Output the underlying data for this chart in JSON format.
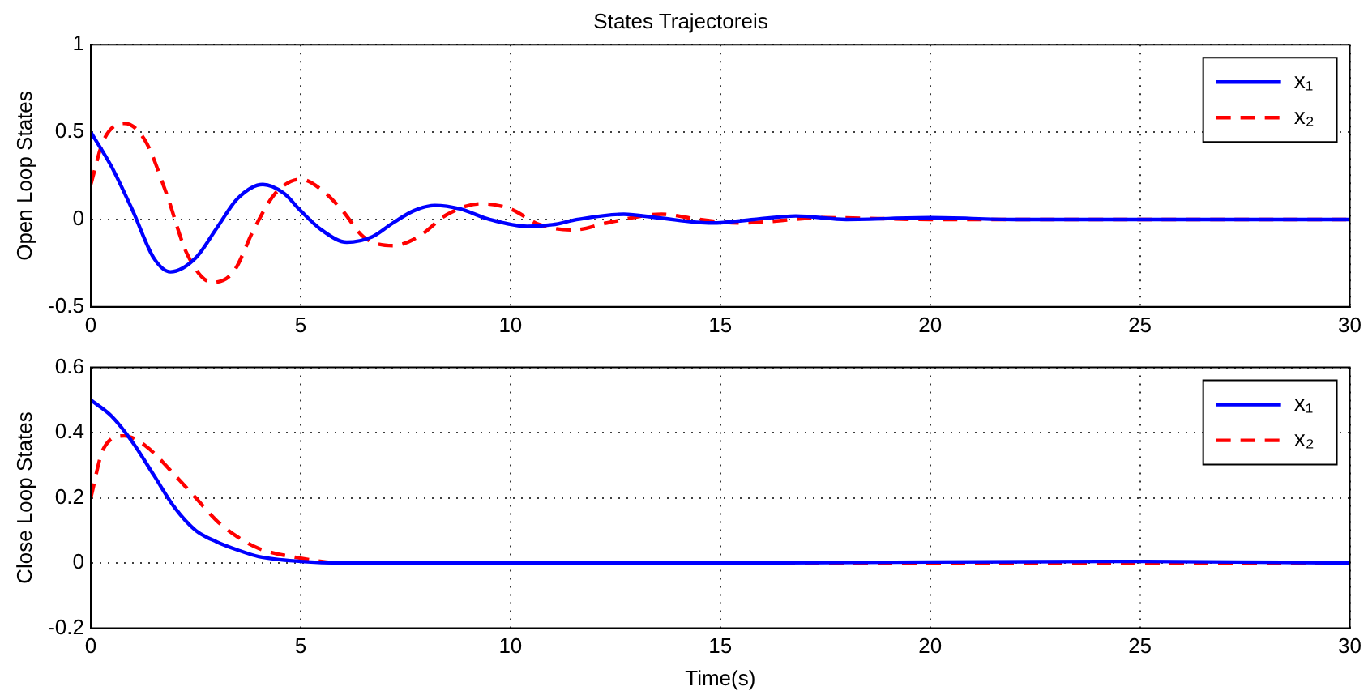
{
  "chart_data": [
    {
      "type": "line",
      "title": "States Trajectoreis",
      "ylabel": "Open Loop States",
      "xlim": [
        0,
        30
      ],
      "xticks": [
        0,
        5,
        10,
        15,
        20,
        25,
        30
      ],
      "ylim": [
        -0.5,
        1
      ],
      "yticks": [
        -0.5,
        0,
        0.5,
        1
      ],
      "grid": true,
      "legend": "top right",
      "marker": "none",
      "series": [
        {
          "name": "x₁",
          "color": "#0000ff",
          "line_style": "solid",
          "x": [
            0,
            0.5,
            1,
            1.5,
            1.9,
            2.5,
            3,
            3.5,
            4.1,
            4.6,
            5,
            5.5,
            6.1,
            6.7,
            7.2,
            7.7,
            8.2,
            8.8,
            9.5,
            10.4,
            11,
            11.6,
            12.7,
            13.5,
            14.8,
            15.8,
            16.8,
            18,
            20,
            22,
            25,
            30
          ],
          "values": [
            0.5,
            0.3,
            0.05,
            -0.22,
            -0.3,
            -0.22,
            -0.05,
            0.12,
            0.2,
            0.15,
            0.05,
            -0.06,
            -0.13,
            -0.1,
            -0.02,
            0.05,
            0.08,
            0.06,
            0,
            -0.04,
            -0.03,
            0,
            0.03,
            0.01,
            -0.02,
            0,
            0.02,
            0,
            0.01,
            0,
            0,
            0
          ]
        },
        {
          "name": "x₂",
          "color": "#ff0000",
          "line_style": "dashed",
          "x": [
            0,
            0.3,
            0.8,
            1.3,
            1.8,
            2.3,
            2.9,
            3.4,
            3.9,
            4.4,
            5,
            5.5,
            6,
            6.5,
            7.2,
            7.8,
            8.5,
            9.3,
            10,
            10.7,
            11.5,
            12.3,
            13.6,
            14.5,
            15.5,
            17.5,
            20,
            25,
            30
          ],
          "values": [
            0.2,
            0.45,
            0.55,
            0.45,
            0.15,
            -0.2,
            -0.36,
            -0.3,
            -0.05,
            0.15,
            0.23,
            0.17,
            0.05,
            -0.1,
            -0.15,
            -0.1,
            0.03,
            0.09,
            0.06,
            -0.03,
            -0.06,
            -0.02,
            0.03,
            0,
            -0.02,
            0.01,
            0,
            0,
            0
          ]
        }
      ]
    },
    {
      "type": "line",
      "xlabel": "Time(s)",
      "ylabel": "Close Loop States",
      "xlim": [
        0,
        30
      ],
      "xticks": [
        0,
        5,
        10,
        15,
        20,
        25,
        30
      ],
      "ylim": [
        -0.2,
        0.6
      ],
      "yticks": [
        -0.2,
        0,
        0.2,
        0.4,
        0.6
      ],
      "grid": true,
      "legend": "top right",
      "marker": "none",
      "series": [
        {
          "name": "x₁",
          "color": "#0000ff",
          "line_style": "solid",
          "x": [
            0,
            0.5,
            1,
            1.5,
            2,
            2.5,
            3,
            3.5,
            4,
            5,
            6,
            10,
            15,
            20,
            25,
            30
          ],
          "values": [
            0.5,
            0.45,
            0.37,
            0.27,
            0.17,
            0.1,
            0.065,
            0.04,
            0.02,
            0.005,
            0,
            0,
            0,
            0.003,
            0.005,
            0
          ]
        },
        {
          "name": "x₂",
          "color": "#ff0000",
          "line_style": "dashed",
          "x": [
            0,
            0.3,
            0.8,
            1.3,
            2,
            2.5,
            3,
            3.5,
            4,
            5,
            6,
            30
          ],
          "values": [
            0.2,
            0.35,
            0.39,
            0.36,
            0.27,
            0.2,
            0.13,
            0.08,
            0.045,
            0.015,
            0,
            0
          ]
        }
      ]
    }
  ]
}
